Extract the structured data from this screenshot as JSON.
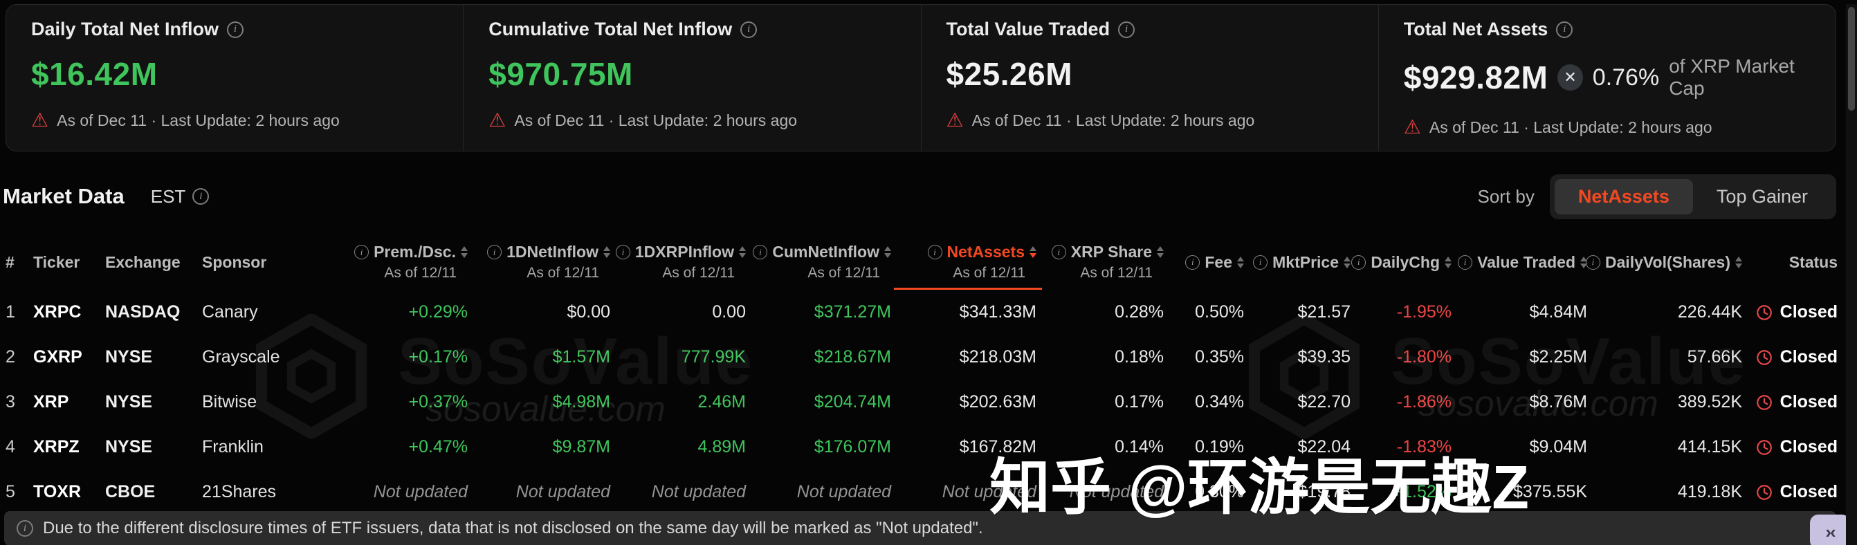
{
  "icons": {
    "info": "i",
    "warning": "⚠",
    "xrp": "✕",
    "collapse": "›‹"
  },
  "colors": {
    "green": "#3fc55c",
    "red": "#ee4545",
    "accent": "#f34822"
  },
  "cards": [
    {
      "title": "Daily Total Net Inflow",
      "value": "$16.42M",
      "value_color": "green",
      "foot": "As of Dec 11 · Last Update: 2 hours ago"
    },
    {
      "title": "Cumulative Total Net Inflow",
      "value": "$970.75M",
      "value_color": "green",
      "foot": "As of Dec 11 · Last Update: 2 hours ago"
    },
    {
      "title": "Total Value Traded",
      "value": "$25.26M",
      "value_color": "white",
      "foot": "As of Dec 11 · Last Update: 2 hours ago"
    },
    {
      "title": "Total Net Assets",
      "value": "$929.82M",
      "value_color": "white",
      "cap_pct": "0.76%",
      "cap_label": "of XRP Market Cap",
      "foot": "As of Dec 11 · Last Update: 2 hours ago"
    }
  ],
  "market": {
    "title": "Market Data",
    "timezone": "EST",
    "sort_by": "Sort by",
    "options": [
      {
        "label": "NetAssets",
        "active": true
      },
      {
        "label": "Top Gainer",
        "active": false
      }
    ]
  },
  "table": {
    "columns": [
      {
        "label": "#"
      },
      {
        "label": "Ticker"
      },
      {
        "label": "Exchange"
      },
      {
        "label": "Sponsor"
      },
      {
        "label": "Prem./Dsc.",
        "sub": "As of 12/11",
        "info": true,
        "sortable": true
      },
      {
        "label": "1DNetInflow",
        "sub": "As of 12/11",
        "info": true,
        "sortable": true
      },
      {
        "label": "1DXRPInflow",
        "sub": "As of 12/11",
        "info": true,
        "sortable": true
      },
      {
        "label": "CumNetInflow",
        "sub": "As of 12/11",
        "info": true,
        "sortable": true
      },
      {
        "label": "NetAssets",
        "sub": "As of 12/11",
        "info": true,
        "sortable": true,
        "active": true
      },
      {
        "label": "XRP Share",
        "sub": "As of 12/11",
        "info": true,
        "sortable": true
      },
      {
        "label": "Fee",
        "info": true,
        "sortable": true
      },
      {
        "label": "MktPrice",
        "info": true,
        "sortable": true
      },
      {
        "label": "DailyChg",
        "info": true,
        "sortable": true
      },
      {
        "label": "Value Traded",
        "info": true,
        "sortable": true
      },
      {
        "label": "DailyVol(Shares)",
        "info": true,
        "sortable": true
      },
      {
        "label": "Status"
      }
    ],
    "status_label": "Closed",
    "rows": [
      {
        "cells": [
          {
            "t": "1"
          },
          {
            "t": "XRPC"
          },
          {
            "t": "NASDAQ"
          },
          {
            "t": "Canary"
          },
          {
            "t": "+0.29%",
            "c": "g"
          },
          {
            "t": "$0.00"
          },
          {
            "t": "0.00"
          },
          {
            "t": "$371.27M",
            "c": "g"
          },
          {
            "t": "$341.33M"
          },
          {
            "t": "0.28%"
          },
          {
            "t": "0.50%"
          },
          {
            "t": "$21.57"
          },
          {
            "t": "-1.95%",
            "c": "r"
          },
          {
            "t": "$4.84M"
          },
          {
            "t": "226.44K"
          },
          {
            "t": "Closed",
            "status": true
          }
        ]
      },
      {
        "cells": [
          {
            "t": "2"
          },
          {
            "t": "GXRP"
          },
          {
            "t": "NYSE"
          },
          {
            "t": "Grayscale"
          },
          {
            "t": "+0.17%",
            "c": "g"
          },
          {
            "t": "$1.57M",
            "c": "g"
          },
          {
            "t": "777.99K",
            "c": "g"
          },
          {
            "t": "$218.67M",
            "c": "g"
          },
          {
            "t": "$218.03M"
          },
          {
            "t": "0.18%"
          },
          {
            "t": "0.35%"
          },
          {
            "t": "$39.35"
          },
          {
            "t": "-1.80%",
            "c": "r"
          },
          {
            "t": "$2.25M"
          },
          {
            "t": "57.66K"
          },
          {
            "t": "Closed",
            "status": true
          }
        ]
      },
      {
        "cells": [
          {
            "t": "3"
          },
          {
            "t": "XRP"
          },
          {
            "t": "NYSE"
          },
          {
            "t": "Bitwise"
          },
          {
            "t": "+0.37%",
            "c": "g"
          },
          {
            "t": "$4.98M",
            "c": "g"
          },
          {
            "t": "2.46M",
            "c": "g"
          },
          {
            "t": "$204.74M",
            "c": "g"
          },
          {
            "t": "$202.63M"
          },
          {
            "t": "0.17%"
          },
          {
            "t": "0.34%"
          },
          {
            "t": "$22.70"
          },
          {
            "t": "-1.86%",
            "c": "r"
          },
          {
            "t": "$8.76M"
          },
          {
            "t": "389.52K"
          },
          {
            "t": "Closed",
            "status": true
          }
        ]
      },
      {
        "cells": [
          {
            "t": "4"
          },
          {
            "t": "XRPZ"
          },
          {
            "t": "NYSE"
          },
          {
            "t": "Franklin"
          },
          {
            "t": "+0.47%",
            "c": "g"
          },
          {
            "t": "$9.87M",
            "c": "g"
          },
          {
            "t": "4.89M",
            "c": "g"
          },
          {
            "t": "$176.07M",
            "c": "g"
          },
          {
            "t": "$167.82M"
          },
          {
            "t": "0.14%"
          },
          {
            "t": "0.19%"
          },
          {
            "t": "$22.04"
          },
          {
            "t": "-1.83%",
            "c": "r"
          },
          {
            "t": "$9.04M"
          },
          {
            "t": "414.15K"
          },
          {
            "t": "Closed",
            "status": true
          }
        ]
      },
      {
        "cells": [
          {
            "t": "5"
          },
          {
            "t": "TOXR"
          },
          {
            "t": "CBOE"
          },
          {
            "t": "21Shares"
          },
          {
            "t": "Not updated",
            "c": "nu"
          },
          {
            "t": "Not updated",
            "c": "nu"
          },
          {
            "t": "Not updated",
            "c": "nu"
          },
          {
            "t": "Not updated",
            "c": "nu"
          },
          {
            "t": "Not updated",
            "c": "nu"
          },
          {
            "t": "Not updated",
            "c": "nu"
          },
          {
            "t": "0.30%"
          },
          {
            "t": "$19.78"
          },
          {
            "t": "+1.52%",
            "c": "g"
          },
          {
            "t": "$375.55K"
          },
          {
            "t": "419.18K"
          },
          {
            "t": "Closed",
            "status": true
          }
        ]
      }
    ]
  },
  "footer": {
    "notice": "Due to the different disclosure times of ETF issuers, data that is not disclosed on the same day will be marked as \"Not updated\"."
  },
  "watermarks": {
    "brand": "SoSoValue",
    "domain": "sosovalue.com",
    "zhihu": "知乎 @环游是无趣Z"
  }
}
